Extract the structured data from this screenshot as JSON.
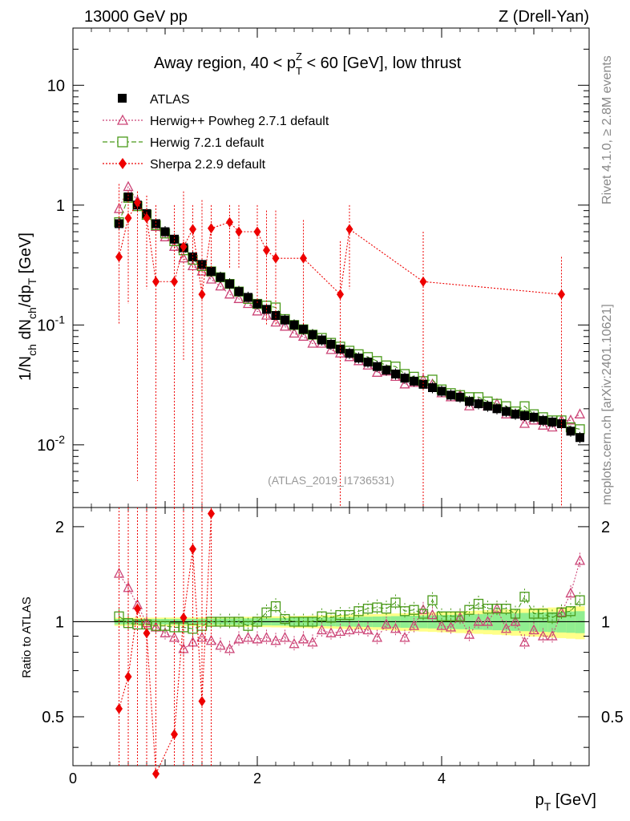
{
  "header": {
    "left": "13000 GeV pp",
    "right": "Z (Drell-Yan)",
    "side_top": "Rivet 4.1.0, ≥ 2.8M events",
    "side_bottom": "mcplots.cern.ch [arXiv:2401.10621]",
    "watermark": "(ATLAS_2019_I1736531)"
  },
  "main": {
    "title": "Away region, 40 < p_T^Z < 60 [GeV], low thrust",
    "ylabel": "1/N_ch dN_ch/dp_T [GeV]",
    "ytick_labels": [
      "10^-2",
      "10^-1",
      "1",
      "10"
    ]
  },
  "ratio": {
    "ylabel": "Ratio to ATLAS",
    "ytick_labels": [
      "0.5",
      "1",
      "2"
    ]
  },
  "xaxis": {
    "label": "p_T [GeV]",
    "tick_labels": [
      "0",
      "2",
      "4"
    ]
  },
  "legend": [
    {
      "key": "atlas",
      "label": "ATLAS"
    },
    {
      "key": "herwigpp",
      "label": "Herwig++ Powheg 2.7.1 default"
    },
    {
      "key": "herwig7",
      "label": "Herwig 7.2.1 default"
    },
    {
      "key": "sherpa",
      "label": "Sherpa 2.2.9 default"
    }
  ],
  "colors": {
    "atlas": "#000000",
    "herwigpp": "#cc4477",
    "herwig7": "#4a9a1a",
    "sherpa": "#ee0000",
    "band_inner": "#90ee90",
    "band_outer": "#ffff88"
  },
  "chart_data": {
    "type": "scatter",
    "title": "Away region, 40 < p_T^Z < 60 [GeV], low thrust",
    "xlabel": "p_T [GeV]",
    "ylabel": "1/N_ch dN_ch/dp_T [GeV]",
    "xlim": [
      0,
      5.6
    ],
    "ylim_main": [
      0.003,
      30
    ],
    "ylim_ratio": [
      0.35,
      2.3
    ],
    "yscale_main": "log",
    "yscale_ratio": "log",
    "legend_position": "top-left",
    "x": [
      0.5,
      0.6,
      0.7,
      0.8,
      0.9,
      1.0,
      1.1,
      1.2,
      1.3,
      1.4,
      1.5,
      1.6,
      1.7,
      1.8,
      1.9,
      2.0,
      2.1,
      2.2,
      2.3,
      2.4,
      2.5,
      2.6,
      2.7,
      2.8,
      2.9,
      3.0,
      3.1,
      3.2,
      3.3,
      3.4,
      3.5,
      3.6,
      3.7,
      3.8,
      3.9,
      4.0,
      4.1,
      4.2,
      4.3,
      4.4,
      4.5,
      4.6,
      4.7,
      4.8,
      4.9,
      5.0,
      5.1,
      5.2,
      5.3,
      5.4,
      5.5
    ],
    "series": [
      {
        "name": "ATLAS",
        "values": [
          0.7,
          1.17,
          1.0,
          0.85,
          0.7,
          0.6,
          0.52,
          0.44,
          0.37,
          0.32,
          0.28,
          0.25,
          0.22,
          0.19,
          0.17,
          0.15,
          0.135,
          0.12,
          0.11,
          0.1,
          0.092,
          0.083,
          0.075,
          0.069,
          0.063,
          0.058,
          0.053,
          0.049,
          0.045,
          0.042,
          0.039,
          0.036,
          0.034,
          0.032,
          0.03,
          0.028,
          0.026,
          0.025,
          0.023,
          0.022,
          0.021,
          0.02,
          0.019,
          0.018,
          0.0175,
          0.017,
          0.016,
          0.0155,
          0.015,
          0.013,
          0.0115
        ]
      },
      {
        "name": "Herwig++ Powheg 2.7.1 default",
        "values": [
          0.93,
          1.42,
          1.08,
          0.82,
          0.66,
          0.54,
          0.45,
          0.36,
          0.31,
          0.28,
          0.24,
          0.21,
          0.18,
          0.165,
          0.15,
          0.13,
          0.12,
          0.105,
          0.097,
          0.085,
          0.08,
          0.07,
          0.07,
          0.062,
          0.058,
          0.054,
          0.05,
          0.046,
          0.04,
          0.041,
          0.037,
          0.032,
          0.033,
          0.035,
          0.032,
          0.027,
          0.025,
          0.026,
          0.021,
          0.022,
          0.021,
          0.022,
          0.018,
          0.018,
          0.015,
          0.016,
          0.0145,
          0.014,
          0.016,
          0.016,
          0.018
        ]
      },
      {
        "name": "Herwig 7.2.1 default",
        "values": [
          0.72,
          1.15,
          0.98,
          0.83,
          0.68,
          0.58,
          0.5,
          0.42,
          0.35,
          0.31,
          0.28,
          0.25,
          0.22,
          0.19,
          0.165,
          0.15,
          0.145,
          0.14,
          0.112,
          0.1,
          0.092,
          0.083,
          0.078,
          0.071,
          0.066,
          0.061,
          0.057,
          0.054,
          0.05,
          0.046,
          0.045,
          0.039,
          0.037,
          0.034,
          0.035,
          0.029,
          0.027,
          0.026,
          0.025,
          0.025,
          0.023,
          0.022,
          0.021,
          0.019,
          0.021,
          0.018,
          0.017,
          0.016,
          0.016,
          0.014,
          0.0135
        ]
      },
      {
        "name": "Sherpa 2.2.9 default",
        "x": [
          0.5,
          0.6,
          0.7,
          0.8,
          0.9,
          1.1,
          1.2,
          1.3,
          1.4,
          1.5,
          1.7,
          1.8,
          2.0,
          2.1,
          2.2,
          2.5,
          2.9,
          3.0,
          3.8,
          5.3
        ],
        "values": [
          0.37,
          0.78,
          1.05,
          0.78,
          0.23,
          0.23,
          0.45,
          0.63,
          0.18,
          0.64,
          0.72,
          0.6,
          0.6,
          0.42,
          0.36,
          0.36,
          0.18,
          0.63,
          0.23,
          0.18
        ]
      }
    ],
    "ratio_series": [
      {
        "name": "Herwig++ Powheg 2.7.1 default",
        "values": [
          1.42,
          1.28,
          1.13,
          0.99,
          0.96,
          0.92,
          0.89,
          0.82,
          0.86,
          0.89,
          0.87,
          0.84,
          0.82,
          0.88,
          0.89,
          0.88,
          0.89,
          0.87,
          0.89,
          0.85,
          0.88,
          0.86,
          0.94,
          0.92,
          0.93,
          0.94,
          0.95,
          0.94,
          0.89,
          0.98,
          0.95,
          0.89,
          0.97,
          1.09,
          1.05,
          0.97,
          0.96,
          1.03,
          0.91,
          1.0,
          1.0,
          1.1,
          0.95,
          1.0,
          0.86,
          0.94,
          0.9,
          0.9,
          1.07,
          1.23,
          1.56
        ]
      },
      {
        "name": "Herwig 7.2.1 default",
        "values": [
          1.04,
          0.99,
          0.98,
          0.98,
          0.97,
          0.97,
          0.96,
          0.96,
          0.95,
          0.97,
          1.0,
          1.0,
          1.0,
          1.0,
          0.97,
          1.0,
          1.07,
          1.12,
          1.02,
          1.0,
          1.0,
          1.0,
          1.04,
          1.03,
          1.05,
          1.05,
          1.08,
          1.1,
          1.11,
          1.1,
          1.15,
          1.08,
          1.09,
          1.06,
          1.17,
          1.04,
          1.04,
          1.04,
          1.09,
          1.14,
          1.1,
          1.1,
          1.1,
          1.06,
          1.2,
          1.06,
          1.06,
          1.03,
          1.07,
          1.08,
          1.17
        ]
      },
      {
        "name": "Sherpa 2.2.9 default",
        "x": [
          0.5,
          0.6,
          0.7,
          0.8,
          0.9,
          1.1,
          1.2,
          1.3,
          1.4,
          1.5
        ],
        "values": [
          0.53,
          0.67,
          1.1,
          0.92,
          0.33,
          0.44,
          1.03,
          1.7,
          0.56,
          2.2
        ]
      }
    ]
  }
}
